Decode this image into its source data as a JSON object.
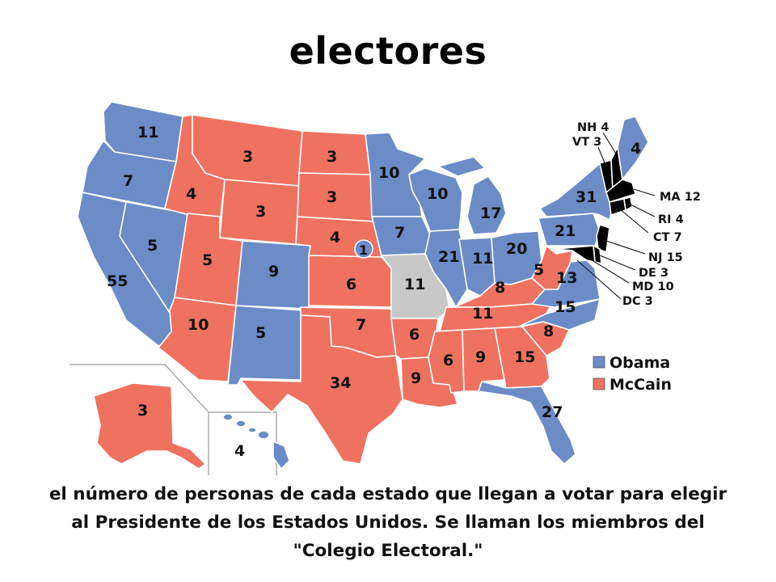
{
  "title": "electores",
  "caption": "el número de personas de cada estado que llegan a votar para elegir al Presidente de los Estados Unidos. Se llaman los miembros del \"Colegio Electoral.\"",
  "colors": {
    "obama": "#6b8cc7",
    "mccain": "#ef7261",
    "undecided": "#c8c8c8",
    "border": "#ffffff"
  },
  "legend": [
    {
      "key": "obama",
      "label": "Obama"
    },
    {
      "key": "mccain",
      "label": "McCain"
    }
  ],
  "states": {
    "WA": {
      "winner": "obama",
      "ev": "11"
    },
    "OR": {
      "winner": "obama",
      "ev": "7"
    },
    "CA": {
      "winner": "obama",
      "ev": "55"
    },
    "NV": {
      "winner": "obama",
      "ev": "5"
    },
    "ID": {
      "winner": "mccain",
      "ev": "4"
    },
    "MT": {
      "winner": "mccain",
      "ev": "3"
    },
    "WY": {
      "winner": "mccain",
      "ev": "3"
    },
    "UT": {
      "winner": "mccain",
      "ev": "5"
    },
    "AZ": {
      "winner": "mccain",
      "ev": "10"
    },
    "CO": {
      "winner": "obama",
      "ev": "9"
    },
    "NM": {
      "winner": "obama",
      "ev": "5"
    },
    "ND": {
      "winner": "mccain",
      "ev": "3"
    },
    "SD": {
      "winner": "mccain",
      "ev": "3"
    },
    "NE": {
      "winner": "mccain",
      "ev": "4"
    },
    "NE2": {
      "winner": "obama",
      "ev": "1"
    },
    "KS": {
      "winner": "mccain",
      "ev": "6"
    },
    "OK": {
      "winner": "mccain",
      "ev": "7"
    },
    "TX": {
      "winner": "mccain",
      "ev": "34"
    },
    "MN": {
      "winner": "obama",
      "ev": "10"
    },
    "IA": {
      "winner": "obama",
      "ev": "7"
    },
    "MO": {
      "winner": "undecided",
      "ev": "11"
    },
    "AR": {
      "winner": "mccain",
      "ev": "6"
    },
    "LA": {
      "winner": "mccain",
      "ev": "9"
    },
    "WI": {
      "winner": "obama",
      "ev": "10"
    },
    "IL": {
      "winner": "obama",
      "ev": "21"
    },
    "MI": {
      "winner": "obama",
      "ev": "17"
    },
    "IN": {
      "winner": "obama",
      "ev": "11"
    },
    "OH": {
      "winner": "obama",
      "ev": "20"
    },
    "KY": {
      "winner": "mccain",
      "ev": "8"
    },
    "TN": {
      "winner": "mccain",
      "ev": "11"
    },
    "MS": {
      "winner": "mccain",
      "ev": "6"
    },
    "AL": {
      "winner": "mccain",
      "ev": "9"
    },
    "GA": {
      "winner": "mccain",
      "ev": "15"
    },
    "FL": {
      "winner": "obama",
      "ev": "27"
    },
    "SC": {
      "winner": "mccain",
      "ev": "8"
    },
    "NC": {
      "winner": "obama",
      "ev": "15"
    },
    "VA": {
      "winner": "obama",
      "ev": "13"
    },
    "WV": {
      "winner": "mccain",
      "ev": "5"
    },
    "PA": {
      "winner": "obama",
      "ev": "21"
    },
    "NY": {
      "winner": "obama",
      "ev": "31"
    },
    "ME": {
      "winner": "obama",
      "ev": "4"
    },
    "AK": {
      "winner": "mccain",
      "ev": "3"
    },
    "HI": {
      "winner": "obama",
      "ev": "4"
    }
  },
  "callouts": [
    {
      "state": "NH",
      "winner": "obama",
      "label": "NH 4"
    },
    {
      "state": "VT",
      "winner": "obama",
      "label": "VT 3"
    },
    {
      "state": "MA",
      "winner": "obama",
      "label": "MA 12"
    },
    {
      "state": "RI",
      "winner": "obama",
      "label": "RI 4"
    },
    {
      "state": "CT",
      "winner": "obama",
      "label": "CT 7"
    },
    {
      "state": "NJ",
      "winner": "obama",
      "label": "NJ 15"
    },
    {
      "state": "DE",
      "winner": "obama",
      "label": "DE 3"
    },
    {
      "state": "MD",
      "winner": "obama",
      "label": "MD 10"
    },
    {
      "state": "DC",
      "winner": "obama",
      "label": "DC 3"
    }
  ]
}
